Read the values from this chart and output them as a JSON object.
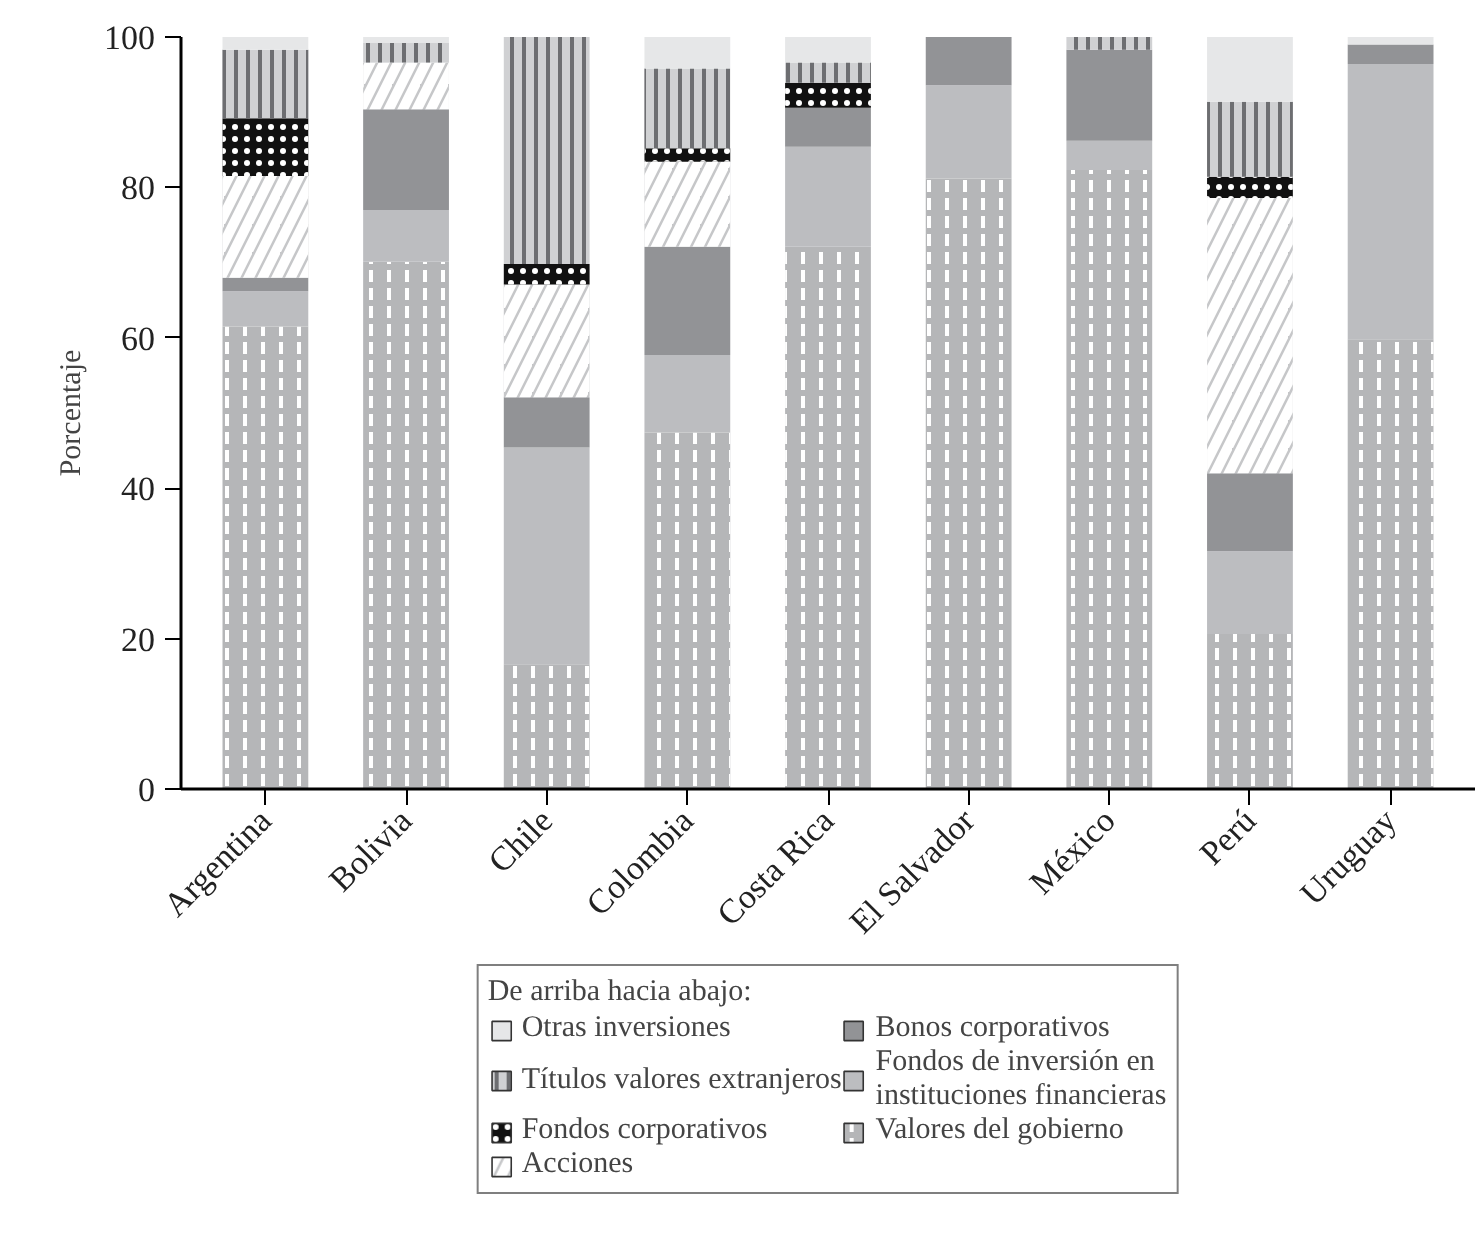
{
  "chart_data": {
    "type": "bar",
    "stacked": true,
    "ylabel": "Porcentaje",
    "legend_title": "De arriba hacia abajo:",
    "categories": [
      "Argentina",
      "Bolivia",
      "Chile",
      "Colombia",
      "Costa Rica",
      "El Salvador",
      "México",
      "Perú",
      "Uruguay"
    ],
    "series": [
      {
        "name": "Valores del gobierno",
        "color": "#b5b6b8",
        "values": [
          61.5,
          70.1,
          16.6,
          47.4,
          72.1,
          81.2,
          82.3,
          20.6,
          59.8
        ]
      },
      {
        "name": "Fondos de inversión en instituciones financieras",
        "color": "#bcbdc0",
        "values": [
          4.7,
          6.9,
          28.8,
          10.3,
          13.3,
          12.4,
          3.9,
          11.0,
          36.6
        ]
      },
      {
        "name": "Bonos corporativos",
        "color": "#929396",
        "values": [
          1.8,
          13.4,
          6.7,
          14.4,
          5.2,
          6.4,
          12.1,
          10.4,
          2.6
        ]
      },
      {
        "name": "Acciones",
        "color": "#c6c7c9",
        "values": [
          13.5,
          6.2,
          15.0,
          11.3,
          0,
          0,
          0,
          36.6,
          0
        ]
      },
      {
        "name": "Fondos corporativos",
        "color": "#111111",
        "values": [
          7.7,
          0,
          2.7,
          1.8,
          3.3,
          0,
          0,
          2.8,
          0
        ]
      },
      {
        "name": "Títulos valores extranjeros",
        "color": "#d0d1d3",
        "values": [
          9.1,
          2.6,
          30.2,
          10.6,
          2.7,
          0,
          1.7,
          10.0,
          0
        ]
      },
      {
        "name": "Otras inversiones",
        "color": "#e6e7e8",
        "values": [
          1.7,
          0.8,
          0,
          4.2,
          3.4,
          0,
          0,
          8.6,
          1.0
        ]
      }
    ],
    "ylim": [
      0,
      100
    ],
    "yticks": [
      0,
      20,
      40,
      60,
      80,
      100
    ],
    "grid": false,
    "legend": "bottom"
  }
}
